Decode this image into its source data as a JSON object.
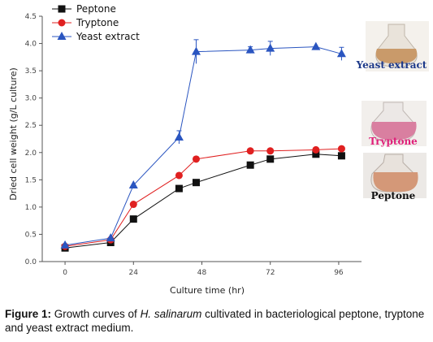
{
  "chart_data": {
    "type": "line",
    "xlabel": "Culture time (hr)",
    "ylabel": "Dried cell weight (g/L culture)",
    "x_ticks": [
      "0",
      "24",
      "48",
      "72",
      "96"
    ],
    "y_ticks": [
      "0.0",
      "0.5",
      "1.0",
      "1.5",
      "2.0",
      "2.5",
      "3.0",
      "3.5",
      "4.0",
      "4.5"
    ],
    "xlim": [
      -8,
      104
    ],
    "ylim": [
      0,
      4.5
    ],
    "legend_position": "top-left",
    "series": [
      {
        "name": "Peptone",
        "marker": "square",
        "color": "#111111",
        "x": [
          0,
          16,
          24,
          40,
          46,
          65,
          72,
          88,
          97
        ],
        "y": [
          0.25,
          0.35,
          0.78,
          1.34,
          1.45,
          1.77,
          1.88,
          1.97,
          1.94
        ]
      },
      {
        "name": "Tryptone",
        "marker": "circle",
        "color": "#e02020",
        "x": [
          0,
          16,
          24,
          40,
          46,
          65,
          72,
          88,
          97
        ],
        "y": [
          0.28,
          0.4,
          1.05,
          1.58,
          1.88,
          2.03,
          2.03,
          2.05,
          2.07
        ]
      },
      {
        "name": "Yeast extract",
        "marker": "triangle",
        "color": "#2a55c0",
        "x": [
          0,
          16,
          24,
          40,
          46,
          65,
          72,
          88,
          97
        ],
        "y": [
          0.3,
          0.43,
          1.4,
          2.28,
          3.85,
          3.88,
          3.91,
          3.94,
          3.81
        ],
        "err": [
          0,
          0,
          0,
          0.12,
          0.22,
          0.06,
          0.13,
          0,
          0.12
        ]
      }
    ]
  },
  "flask_labels": {
    "yeast": "Yeast extract",
    "tryptone": "Tryptone",
    "peptone": "Peptone"
  },
  "caption": {
    "label": "Figure 1:",
    "text_before": " Growth curves of ",
    "species": "H. salinarum",
    "text_after": " cultivated in bacteriological peptone, tryptone and yeast extract medium."
  },
  "colors": {
    "flask_yeast": "#c99a6a",
    "flask_tryptone": "#d97fa0",
    "flask_peptone": "#d49878",
    "label_yeast": "#1e3a8a",
    "label_tryptone": "#e0207a",
    "label_peptone": "#111111"
  }
}
